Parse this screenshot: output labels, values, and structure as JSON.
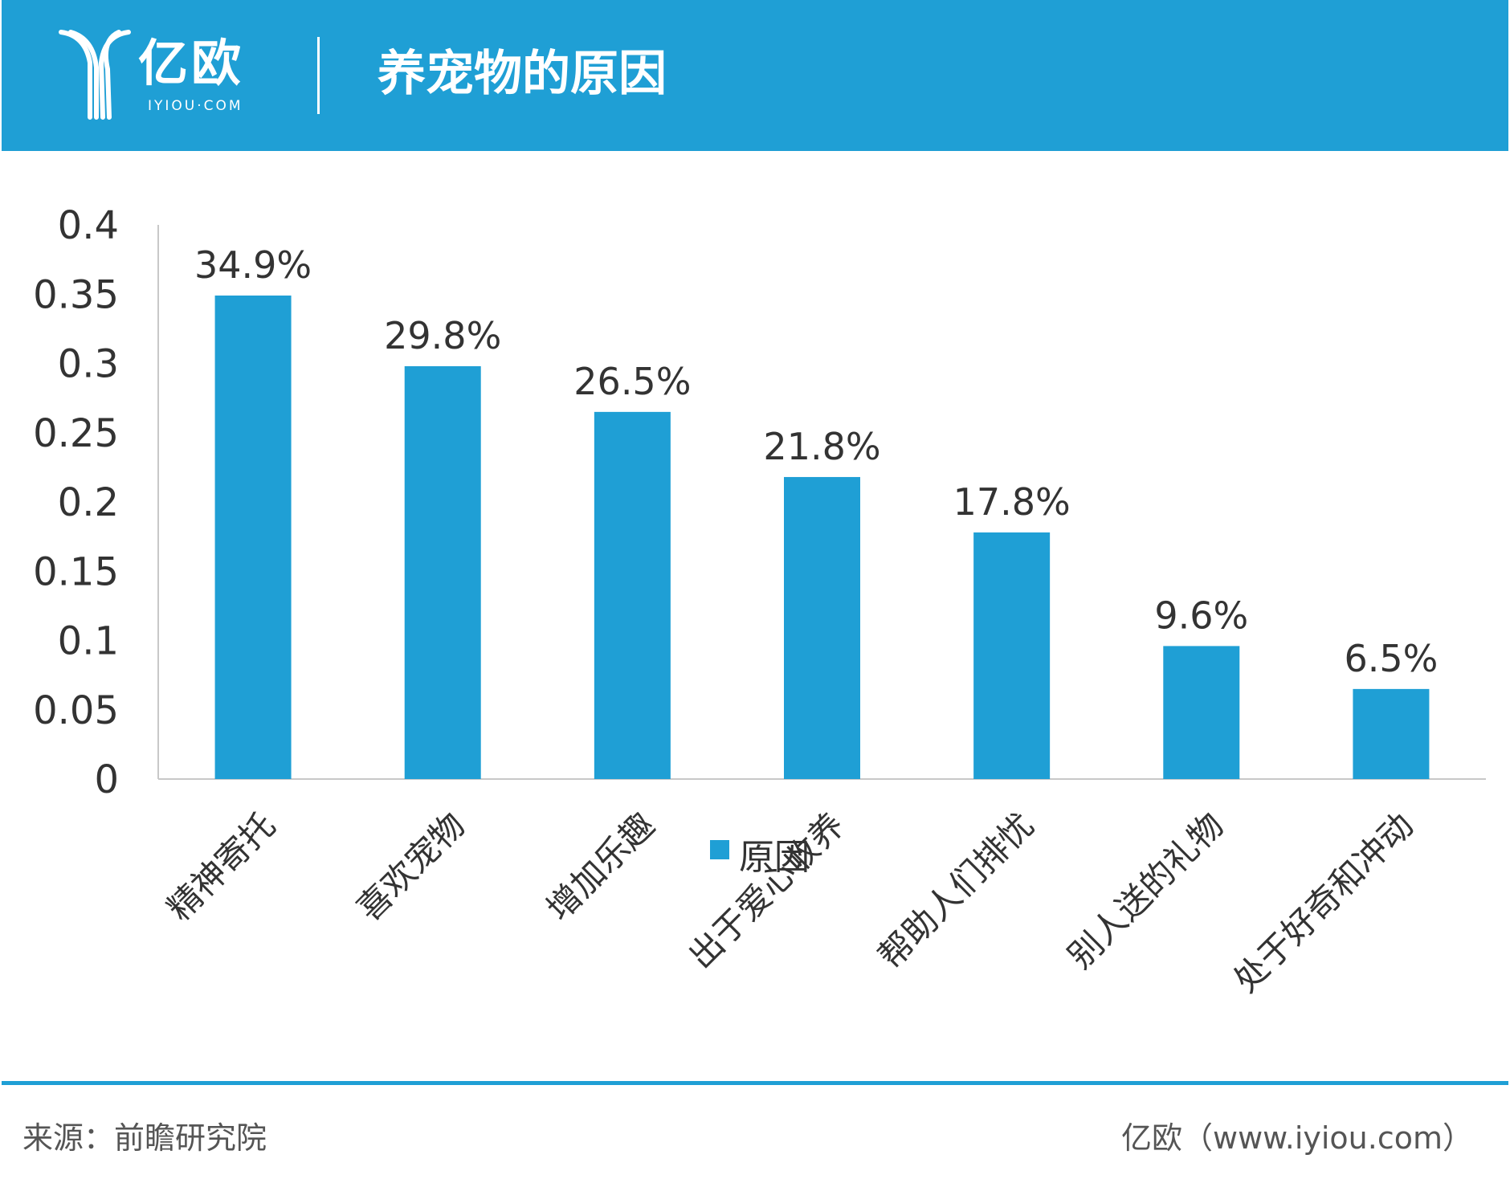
{
  "header": {
    "logo_text": "亿欧",
    "logo_subtext": "IYIOU·COM",
    "title": "养宠物的原因"
  },
  "colors": {
    "accent": "#1f9fd5",
    "bar": "#1f9fd5",
    "axis": "#c8c8c8",
    "text": "#333333"
  },
  "chart_data": {
    "type": "bar",
    "title": "",
    "xlabel": "",
    "ylabel": "",
    "ylim": [
      0,
      0.4
    ],
    "yticks": [
      0,
      0.05,
      0.1,
      0.15,
      0.2,
      0.25,
      0.3,
      0.35,
      0.4
    ],
    "ytick_labels": [
      "0",
      "0.05",
      "0.1",
      "0.15",
      "0.2",
      "0.25",
      "0.3",
      "0.35",
      "0.4"
    ],
    "categories": [
      "精神寄托",
      "喜欢宠物",
      "增加乐趣",
      "出于爱心收养",
      "帮助人们排忧",
      "别人送的礼物",
      "处于好奇和冲动"
    ],
    "series": [
      {
        "name": "原因",
        "values": [
          0.349,
          0.298,
          0.265,
          0.218,
          0.178,
          0.096,
          0.065
        ],
        "data_labels": [
          "34.9%",
          "29.8%",
          "26.5%",
          "21.8%",
          "17.8%",
          "9.6%",
          "6.5%"
        ]
      }
    ],
    "legend": "bottom-center",
    "grid": false
  },
  "footer": {
    "source": "来源：前瞻研究院",
    "brand": "亿欧（www.iyiou.com）"
  }
}
